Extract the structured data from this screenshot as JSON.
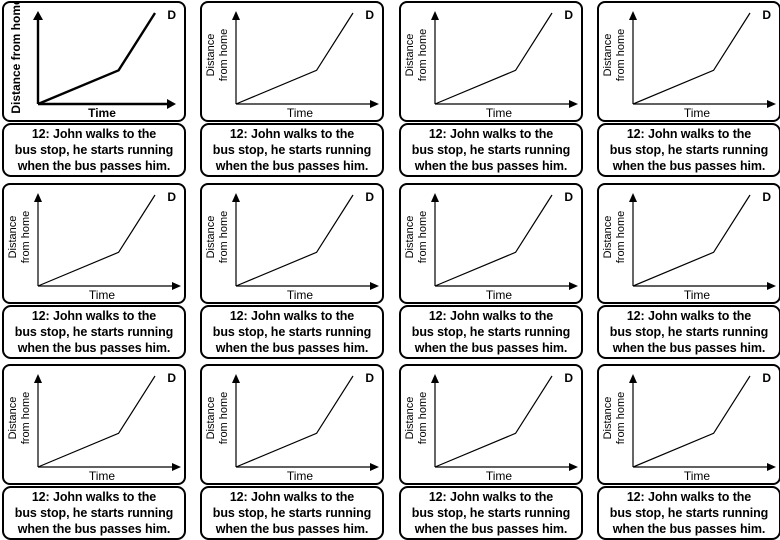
{
  "card": {
    "letter": "D",
    "x_axis_label": "Time",
    "y_axis_label_line1": "Distance",
    "y_axis_label_line2": "from home",
    "y_axis_label_combined": "Distance from home",
    "caption_line1": "12: John walks to the",
    "caption_line2": "bus stop, he starts running",
    "caption_line3": "when the bus passes him."
  },
  "chart_data": {
    "type": "line",
    "x": [
      0,
      0.53,
      0.77
    ],
    "y": [
      0,
      0.37,
      1.0
    ],
    "xlabel": "Time",
    "ylabel": "Distance from home",
    "title": ""
  }
}
